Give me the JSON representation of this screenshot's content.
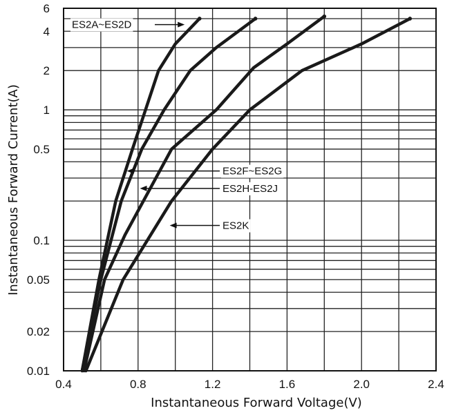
{
  "chart_data": {
    "type": "line",
    "xlabel": "Instantaneous Forward Voltage(V)",
    "ylabel": "Instantaneous Forward Current(A)",
    "x_scale": "linear",
    "y_scale": "log",
    "xlim": [
      0.4,
      2.4
    ],
    "ylim": [
      0.01,
      6
    ],
    "x_ticks": [
      {
        "value": 0.4,
        "label": "0.4"
      },
      {
        "value": 0.8,
        "label": "0.8"
      },
      {
        "value": 1.2,
        "label": "1.2"
      },
      {
        "value": 1.6,
        "label": "1.6"
      },
      {
        "value": 2.0,
        "label": "2.0"
      },
      {
        "value": 2.4,
        "label": "2.4"
      }
    ],
    "y_ticks": [
      {
        "value": 0.01,
        "label": "0.01"
      },
      {
        "value": 0.02,
        "label": "0.02"
      },
      {
        "value": 0.05,
        "label": "0.05"
      },
      {
        "value": 0.1,
        "label": "0.1"
      },
      {
        "value": 0.5,
        "label": "0.5"
      },
      {
        "value": 1,
        "label": "1"
      },
      {
        "value": 2,
        "label": "2"
      },
      {
        "value": 4,
        "label": "4"
      },
      {
        "value": 6,
        "label": "6"
      }
    ],
    "x_grid": [
      0.6,
      0.8,
      1.0,
      1.2,
      1.4,
      1.6,
      1.8,
      2.0,
      2.2
    ],
    "y_grid": [
      0.02,
      0.03,
      0.04,
      0.05,
      0.06,
      0.07,
      0.08,
      0.09,
      0.1,
      0.2,
      0.3,
      0.4,
      0.5,
      0.6,
      0.7,
      0.8,
      0.9,
      1,
      2,
      3,
      4,
      5
    ],
    "grid": true,
    "series": [
      {
        "name": "ES2A~ES2D",
        "x": [
          0.5,
          0.59,
          0.68,
          0.77,
          0.84,
          0.91,
          1.0,
          1.13
        ],
        "y": [
          0.01,
          0.05,
          0.2,
          0.5,
          1.0,
          2.0,
          3.2,
          5.0
        ]
      },
      {
        "name": "ES2F~ES2G",
        "x": [
          0.5,
          0.6,
          0.71,
          0.82,
          0.94,
          1.08,
          1.22,
          1.43
        ],
        "y": [
          0.01,
          0.05,
          0.2,
          0.5,
          1.0,
          2.0,
          3.0,
          5.0
        ]
      },
      {
        "name": "ES2H-ES2J",
        "x": [
          0.51,
          0.62,
          0.73,
          0.98,
          1.22,
          1.42,
          1.6,
          1.8
        ],
        "y": [
          0.01,
          0.05,
          0.11,
          0.5,
          1.0,
          2.1,
          3.2,
          5.2
        ]
      },
      {
        "name": "ES2K",
        "x": [
          0.52,
          0.72,
          0.98,
          1.2,
          1.4,
          1.68,
          2.0,
          2.26
        ],
        "y": [
          0.01,
          0.05,
          0.2,
          0.5,
          1.0,
          2.0,
          3.2,
          5.0
        ]
      }
    ],
    "annotations": [
      {
        "text": "ES2A~ES2D",
        "series": "ES2A~ES2D",
        "arrow_tip": {
          "x": 1.05,
          "y": 4.5
        }
      },
      {
        "text": "ES2F~ES2G",
        "series": "ES2F~ES2G",
        "arrow_tip": {
          "x": 0.74,
          "y": 0.34
        }
      },
      {
        "text": "ES2H-ES2J",
        "series": "ES2H-ES2J",
        "arrow_tip": {
          "x": 0.81,
          "y": 0.25
        }
      },
      {
        "text": "ES2K",
        "series": "ES2K",
        "arrow_tip": {
          "x": 0.97,
          "y": 0.13
        }
      }
    ]
  }
}
